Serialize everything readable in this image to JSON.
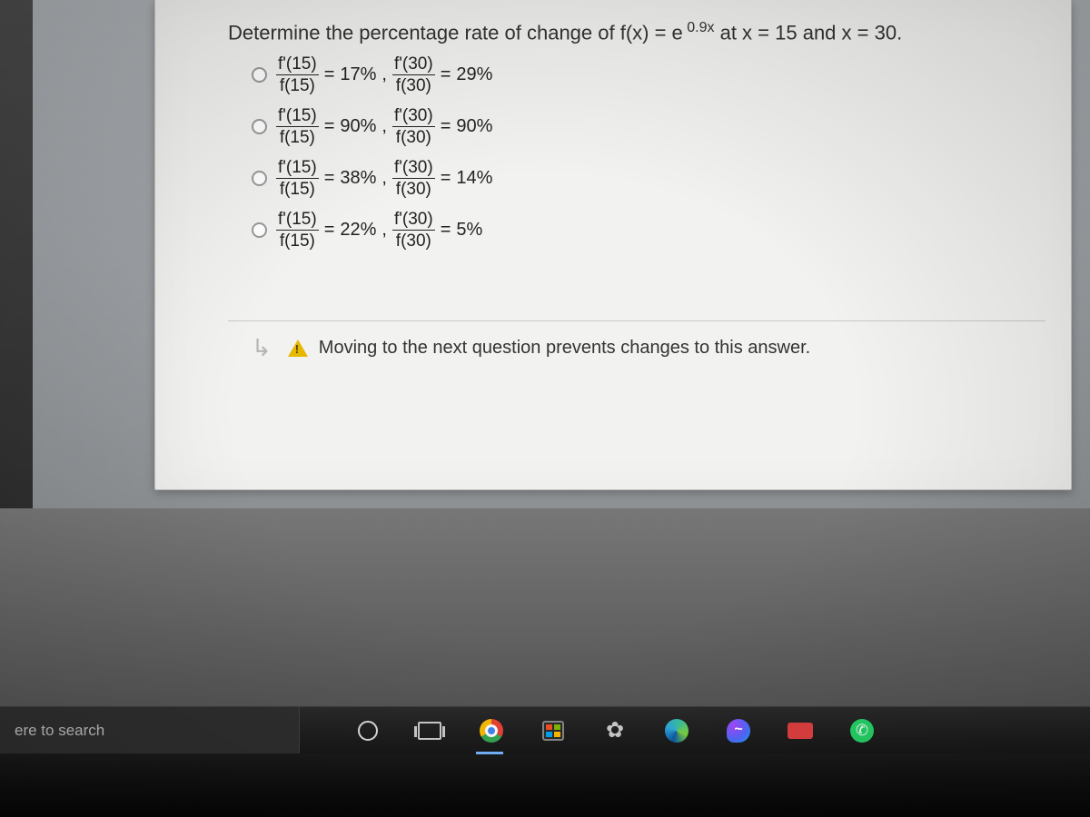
{
  "question": {
    "prefix": "Determine the percentage rate of change of f(x) = e",
    "exponent": " 0.9x",
    "suffix": " at x = 15 and x = 30."
  },
  "options": [
    {
      "p15": "17%",
      "p30": "29%"
    },
    {
      "p15": "90%",
      "p30": "90%"
    },
    {
      "p15": "38%",
      "p30": "14%"
    },
    {
      "p15": "22%",
      "p30": "5%"
    }
  ],
  "frac_labels": {
    "num15": "f'(15)",
    "den15": "f(15)",
    "num30": "f'(30)",
    "den30": "f(30)"
  },
  "warning": "Moving to the next question prevents changes to this answer.",
  "taskbar": {
    "search_text": "ere to search"
  },
  "colors": {
    "window_bg": "#f2f2f0",
    "text": "#333333",
    "taskbar_bg": "#1e1e1e"
  }
}
